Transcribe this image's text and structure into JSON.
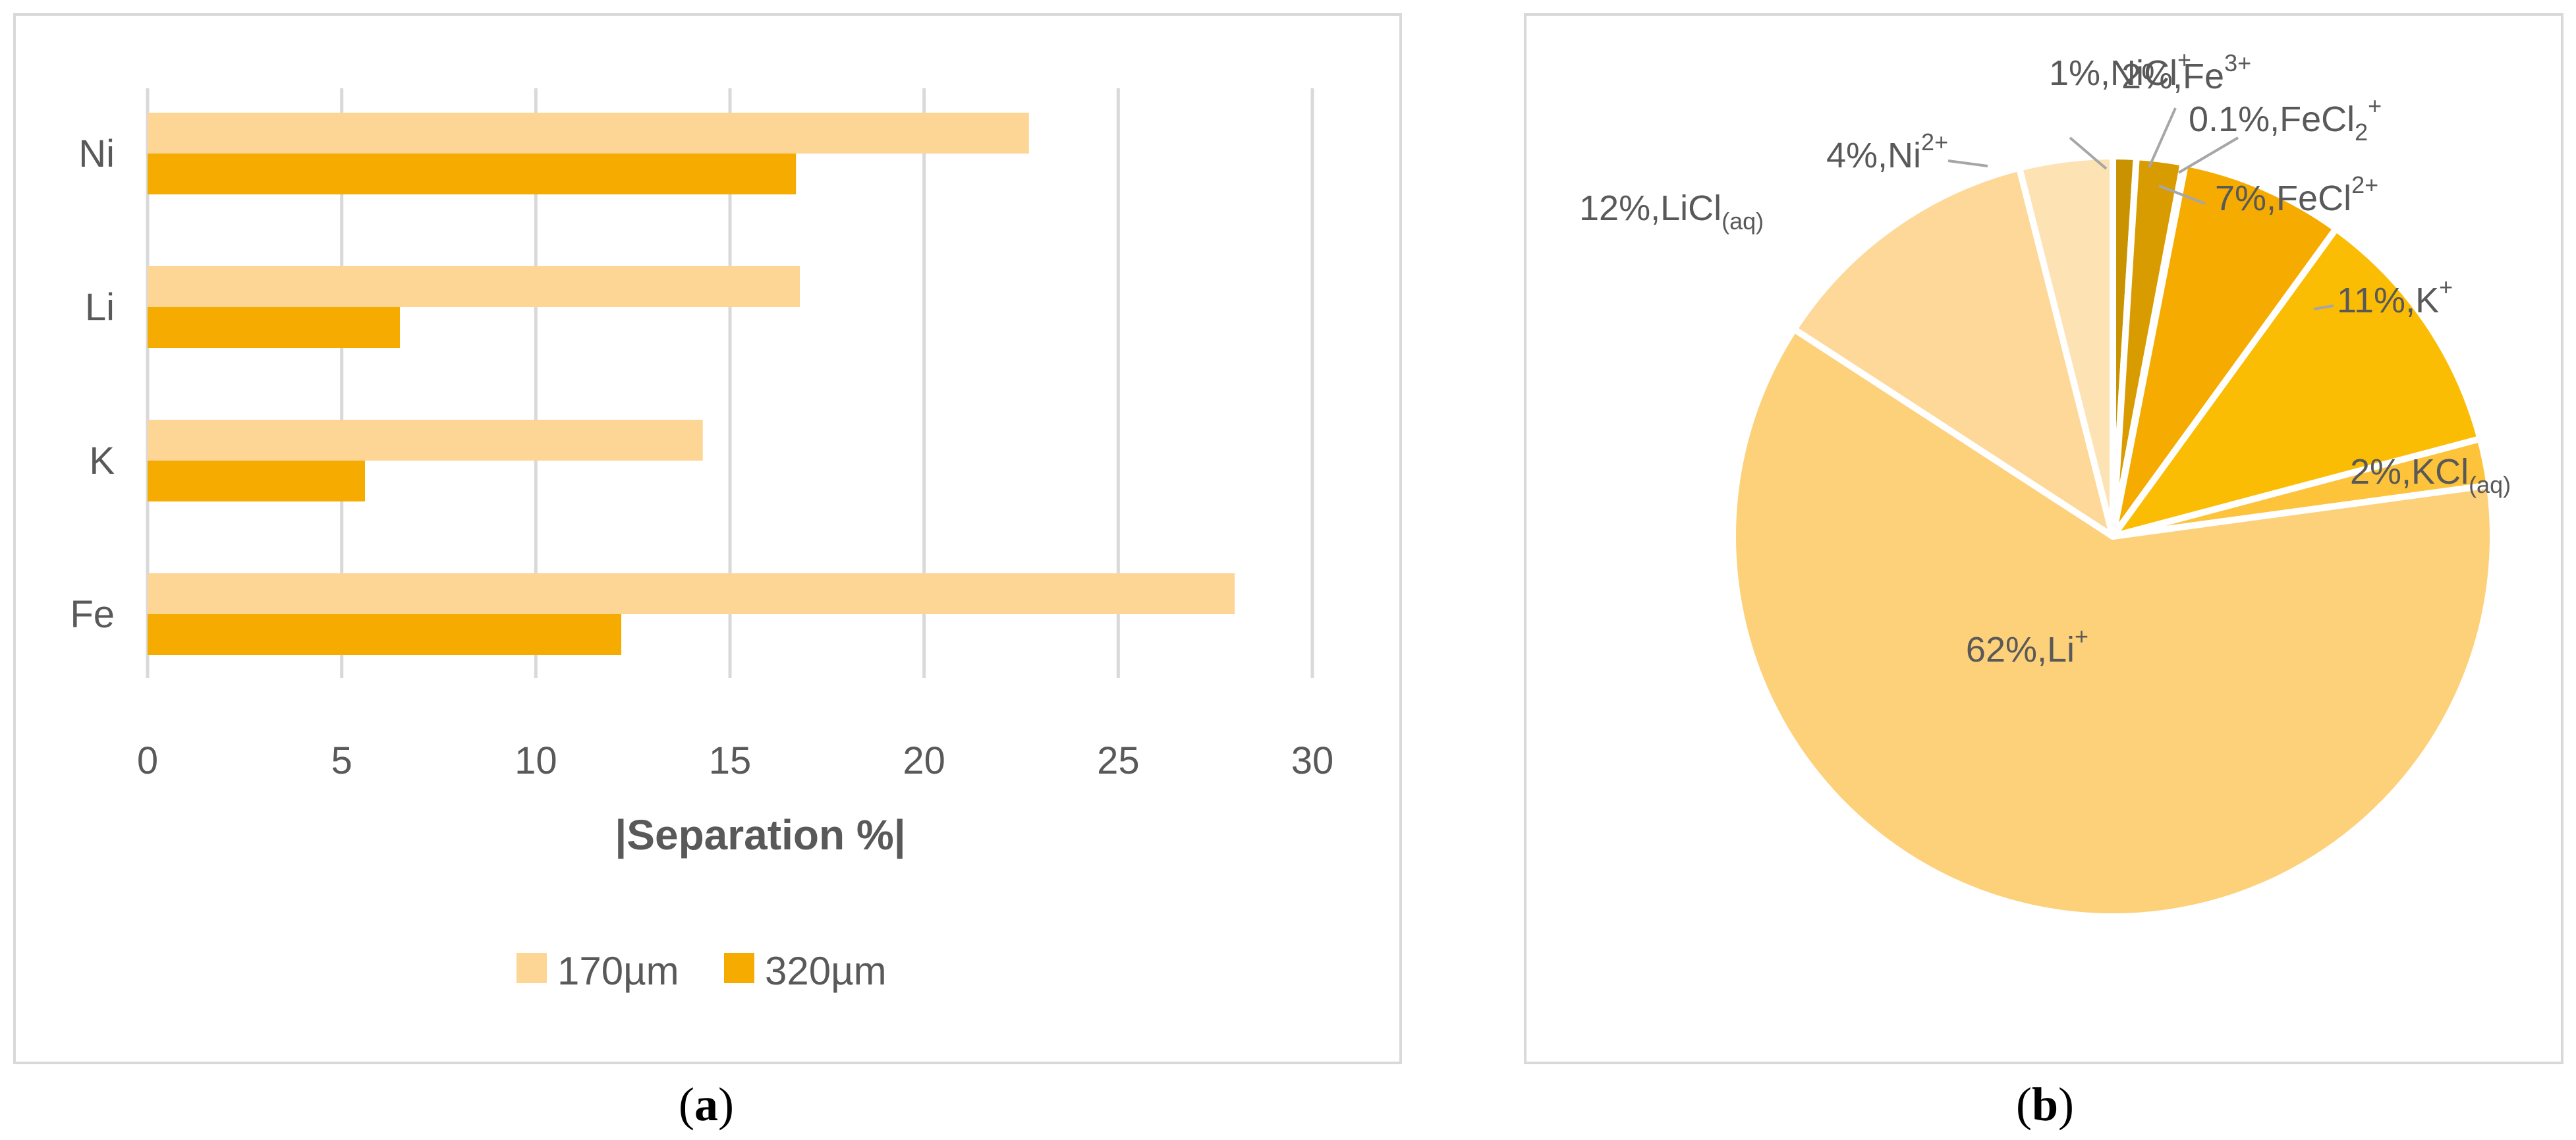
{
  "captions": {
    "a": "a",
    "b": "b"
  },
  "chart_data": [
    {
      "type": "bar",
      "orientation": "horizontal",
      "categories": [
        "Ni",
        "Li",
        "K",
        "Fe"
      ],
      "series": [
        {
          "name": "170µm",
          "color": "#fdd595",
          "values": [
            22.7,
            16.8,
            14.3,
            28.0
          ]
        },
        {
          "name": "320µm",
          "color": "#f5ab00",
          "values": [
            16.7,
            6.5,
            5.6,
            12.2
          ]
        }
      ],
      "xlabel": "|Separation %|",
      "xlim": [
        0,
        30
      ],
      "xticks": [
        0,
        5,
        10,
        15,
        20,
        25,
        30
      ],
      "grid": true,
      "legend": "bottom"
    },
    {
      "type": "pie",
      "slices": [
        {
          "label": "1%,NiCl",
          "sup": "+",
          "sub": "",
          "value": 1,
          "color": "#c99200"
        },
        {
          "label": "2%,Fe",
          "sup": "3+",
          "sub": "",
          "value": 2,
          "color": "#d99c00"
        },
        {
          "label": "0.1%,FeCl",
          "sup": "+",
          "sub": "2",
          "value": 0.1,
          "color": "#e6a600"
        },
        {
          "label": "7%,FeCl",
          "sup": "2+",
          "sub": "",
          "value": 7,
          "color": "#f5ab00"
        },
        {
          "label": "11%,K",
          "sup": "+",
          "sub": "",
          "value": 11,
          "color": "#fbbc04"
        },
        {
          "label": "2%,KCl",
          "sup": "",
          "sub": "(aq)",
          "value": 2,
          "color": "#fdc33a"
        },
        {
          "label": "62%,Li",
          "sup": "+",
          "sub": "",
          "value": 62,
          "color": "#fdd07a"
        },
        {
          "label": "12%,LiCl",
          "sup": "",
          "sub": "(aq)",
          "value": 12,
          "color": "#fdd898"
        },
        {
          "label": "4%,Ni",
          "sup": "2+",
          "sub": "",
          "value": 4,
          "color": "#fde2b4"
        }
      ]
    }
  ]
}
